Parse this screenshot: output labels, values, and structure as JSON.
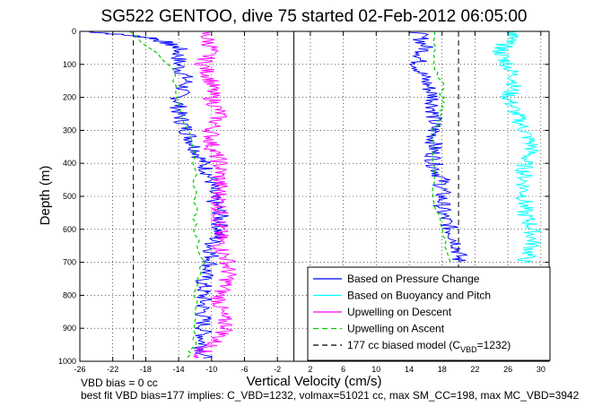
{
  "chart_data": {
    "type": "line",
    "title": "SG522 GENTOO, dive 75 started 02-Feb-2012 06:05:00",
    "xlabel": "Vertical Velocity (cm/s)",
    "ylabel": "Depth (m)",
    "xlim": [
      -26,
      31
    ],
    "ylim": [
      0,
      1000
    ],
    "y_reversed": true,
    "grid": true,
    "legend_position": "bottom-right",
    "x_ticks": [
      "-26",
      "-22",
      "-18",
      "-14",
      "-10",
      "-6",
      "-2",
      "2",
      "6",
      "10",
      "14",
      "18",
      "22",
      "26",
      "30"
    ],
    "x_tick_values": [
      -26,
      -22,
      -18,
      -14,
      -10,
      -6,
      -2,
      2,
      6,
      10,
      14,
      18,
      22,
      26,
      30
    ],
    "y_ticks": [
      "0",
      "100",
      "200",
      "300",
      "400",
      "500",
      "600",
      "700",
      "800",
      "900",
      "1000"
    ],
    "y_tick_values": [
      0,
      100,
      200,
      300,
      400,
      500,
      600,
      700,
      800,
      900,
      1000
    ],
    "vertical_lines": [
      {
        "x": -19.5,
        "style": "dashed",
        "color": "#000000"
      },
      {
        "x": 20,
        "style": "dashed",
        "color": "#000000"
      },
      {
        "x": 0,
        "style": "solid",
        "color": "#000000"
      }
    ],
    "series": [
      {
        "name": "Based on Pressure Change",
        "color": "#0000ff",
        "style": "solid",
        "segments": [
          {
            "depth": [
              0,
              20,
              50,
              100,
              150,
              200,
              250,
              300,
              350,
              400,
              450,
              500,
              550,
              600,
              650,
              700,
              750,
              800,
              850,
              900,
              950,
              990
            ],
            "x": [
              -25,
              -17,
              -14,
              -14,
              -13,
              -14,
              -14,
              -13,
              -12,
              -11,
              -10,
              -10,
              -9,
              -9,
              -10,
              -10,
              -11,
              -11,
              -11,
              -11,
              -11,
              -11
            ]
          },
          {
            "depth": [
              0,
              50,
              100,
              150,
              200,
              250,
              300,
              350,
              400,
              450,
              500,
              550,
              600,
              650,
              700
            ],
            "x": [
              15,
              16,
              15,
              16,
              17,
              17,
              17,
              17,
              17,
              18,
              18,
              18,
              19,
              20,
              20
            ]
          }
        ]
      },
      {
        "name": "Based on Buoyancy and Pitch",
        "color": "#00ffff",
        "style": "solid",
        "segments": [
          {
            "depth": [
              0,
              30,
              60,
              100,
              150,
              200,
              250,
              300,
              350,
              400,
              450,
              500,
              550,
              600,
              650,
              700
            ],
            "x": [
              27,
              26,
              25,
              26,
              27,
              26,
              27,
              28,
              29,
              28,
              28,
              28,
              28,
              29,
              29,
              28
            ]
          }
        ]
      },
      {
        "name": "Upwelling on Descent",
        "color": "#ff00ff",
        "style": "solid",
        "segments": [
          {
            "depth": [
              0,
              50,
              100,
              150,
              200,
              250,
              300,
              350,
              400,
              450,
              500,
              550,
              600,
              650,
              700,
              750,
              800,
              850,
              900,
              950,
              990
            ],
            "x": [
              -11,
              -10,
              -11,
              -10,
              -10,
              -9,
              -10,
              -10,
              -9,
              -9,
              -9,
              -9,
              -9,
              -9,
              -8,
              -8,
              -9,
              -9,
              -8,
              -10,
              -12
            ]
          }
        ]
      },
      {
        "name": "Upwelling on Ascent",
        "color": "#00cc00",
        "style": "dashed",
        "segments": [
          {
            "depth": [
              0,
              100,
              200,
              300,
              400,
              500,
              600,
              700,
              800,
              900,
              950,
              990
            ],
            "x": [
              -20,
              -15,
              -14,
              -13,
              -12,
              -12,
              -12,
              -11,
              -12,
              -12,
              -12,
              -13
            ]
          },
          {
            "depth": [
              0,
              100,
              150,
              200,
              250,
              300,
              400,
              500,
              600,
              700
            ],
            "x": [
              17,
              17,
              18,
              18,
              18,
              17,
              17,
              17,
              18,
              19
            ]
          }
        ]
      },
      {
        "name": "177 cc biased model (C",
        "name_sub": "VBD",
        "name_suffix": "=1232)",
        "color": "#000000",
        "style": "dashed",
        "segments": []
      }
    ]
  },
  "footer": {
    "line1": "VBD bias = 0 cc",
    "line2": "best fit VBD bias=177 implies: C_VBD=1232, volmax=51021 cc, max SM_CC=198, max MC_VBD=3942"
  }
}
